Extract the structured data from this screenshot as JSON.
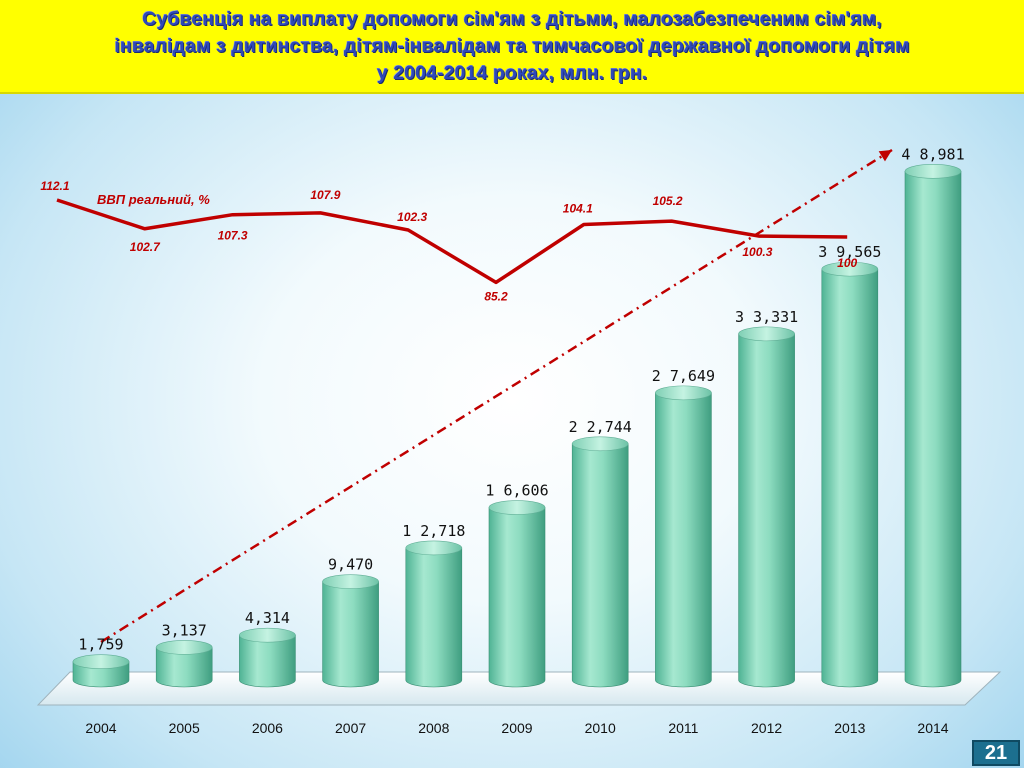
{
  "title": {
    "lines": [
      "Субвенція на виплату допомоги сім'ям з дітьми, малозабезпеченим сім'ям,",
      "інвалідам з дитинства, дітям-інвалідам та тимчасової державної допомоги дітям",
      "у 2004-2014 роках, млн. грн."
    ]
  },
  "page_number": "21",
  "colors": {
    "title_bg": "#ffff00",
    "title_text": "#2f49b8",
    "bar": "#7fd4b6",
    "gdp_line": "#c00000",
    "trend_line": "#c00000"
  },
  "chart_data": {
    "type": "bar",
    "categories": [
      "2004",
      "2005",
      "2006",
      "2007",
      "2008",
      "2009",
      "2010",
      "2011",
      "2012",
      "2013",
      "2014"
    ],
    "values": [
      1759,
      3137,
      4314,
      9470,
      12718,
      16606,
      22744,
      27649,
      33331,
      39565,
      48981
    ],
    "value_labels": [
      "1,759",
      "3,137",
      "4,314",
      "9,470",
      "1 2,718",
      "1 6,606",
      "2 2,744",
      "2 7,649",
      "3 3,331",
      "3 9,565",
      "4 8,981"
    ],
    "ylim": [
      0,
      52000
    ],
    "overlay_line": {
      "name": "ВВП реальний, %",
      "categories": [
        "2004",
        "2005",
        "2006",
        "2007",
        "2008",
        "2009",
        "2010",
        "2011",
        "2012",
        "2013"
      ],
      "values": [
        112.1,
        102.7,
        107.3,
        107.9,
        102.3,
        85.2,
        104.1,
        105.2,
        100.3,
        100
      ],
      "labels": [
        "112.1",
        "102.7",
        "107.3",
        "107.9",
        "102.3",
        "85.2",
        "104.1",
        "105.2",
        "100.3",
        "100"
      ],
      "ylim": [
        85,
        112.1
      ]
    },
    "trend_line": true,
    "legend": "top-left"
  }
}
